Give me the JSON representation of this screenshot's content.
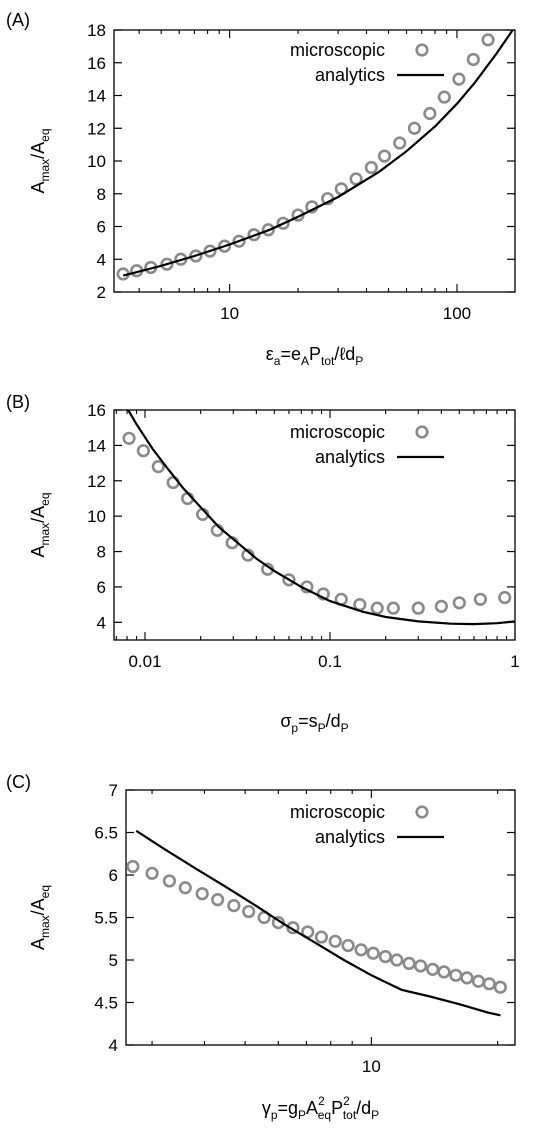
{
  "figure": {
    "colors": {
      "microscopic": "#8a8a8a",
      "analytics": "#000000"
    }
  },
  "chart_data": [
    {
      "type": "scatter",
      "panel_label": "(A)",
      "xscale": "log",
      "xlim": [
        3.1,
        180
      ],
      "ylim": [
        2,
        18
      ],
      "xticks": [
        10,
        100
      ],
      "xtick_labels": [
        "10",
        "100"
      ],
      "yticks": [
        2,
        4,
        6,
        8,
        10,
        12,
        14,
        16,
        18
      ],
      "ytick_labels": [
        "2",
        "4",
        "6",
        "8",
        "10",
        "12",
        "14",
        "16",
        "18"
      ],
      "ylabel": {
        "main": "A",
        "sub1": "max",
        "mid": "/A",
        "sub2": "eq"
      },
      "xlabel": {
        "parts": [
          [
            "ε",
            ""
          ],
          [
            "a",
            "sub"
          ],
          [
            "=e",
            ""
          ],
          [
            "A",
            "sub"
          ],
          [
            "P",
            ""
          ],
          [
            "tot",
            "sub"
          ],
          [
            "/ℓd",
            ""
          ],
          [
            "P",
            "sub"
          ]
        ]
      },
      "legend_position": "top-right",
      "grid": false,
      "series": [
        {
          "name": "microscopic",
          "kind": "points",
          "x": [
            3.4,
            3.9,
            4.5,
            5.3,
            6.1,
            7.1,
            8.2,
            9.5,
            11,
            12.8,
            14.8,
            17.2,
            20,
            23,
            27,
            31,
            36,
            42,
            48,
            56,
            65,
            76,
            88,
            102,
            118,
            137
          ],
          "y": [
            3.1,
            3.3,
            3.5,
            3.7,
            4.0,
            4.2,
            4.5,
            4.8,
            5.1,
            5.5,
            5.8,
            6.2,
            6.7,
            7.2,
            7.7,
            8.3,
            8.9,
            9.6,
            10.3,
            11.1,
            12.0,
            12.9,
            13.9,
            15.0,
            16.2,
            17.4
          ]
        },
        {
          "name": "analytics",
          "kind": "line",
          "x": [
            3.4,
            5,
            7,
            10,
            15,
            20,
            30,
            45,
            60,
            80,
            100,
            120,
            150,
            180
          ],
          "y": [
            3.0,
            3.6,
            4.2,
            4.9,
            5.8,
            6.6,
            7.8,
            9.3,
            10.6,
            12.1,
            13.5,
            14.8,
            16.6,
            18.2
          ]
        }
      ]
    },
    {
      "type": "scatter",
      "panel_label": "(B)",
      "xscale": "log",
      "xlim": [
        0.0068,
        1
      ],
      "ylim": [
        3,
        16
      ],
      "xticks": [
        0.01,
        0.1,
        1
      ],
      "xtick_labels": [
        "0.01",
        "0.1",
        "1"
      ],
      "yticks": [
        4,
        6,
        8,
        10,
        12,
        14,
        16
      ],
      "ytick_labels": [
        "4",
        "6",
        "8",
        "10",
        "12",
        "14",
        "16"
      ],
      "ylabel": {
        "main": "A",
        "sub1": "max",
        "mid": "/A",
        "sub2": "eq"
      },
      "xlabel": {
        "parts": [
          [
            "σ",
            ""
          ],
          [
            "p",
            "sub"
          ],
          [
            "=s",
            ""
          ],
          [
            "P",
            "sub"
          ],
          [
            "/d",
            ""
          ],
          [
            "P",
            "sub"
          ]
        ]
      },
      "legend_position": "top-right",
      "grid": false,
      "series": [
        {
          "name": "microscopic",
          "kind": "points",
          "x": [
            0.0082,
            0.0098,
            0.0118,
            0.0142,
            0.017,
            0.0205,
            0.0246,
            0.0296,
            0.036,
            0.046,
            0.06,
            0.075,
            0.092,
            0.115,
            0.145,
            0.18,
            0.22,
            0.3,
            0.4,
            0.5,
            0.65,
            0.88
          ],
          "y": [
            14.4,
            13.7,
            12.8,
            11.9,
            11.0,
            10.1,
            9.2,
            8.5,
            7.8,
            7.0,
            6.4,
            6.0,
            5.6,
            5.3,
            5.0,
            4.8,
            4.8,
            4.8,
            4.9,
            5.1,
            5.3,
            5.4
          ]
        },
        {
          "name": "analytics",
          "kind": "line",
          "x": [
            0.0075,
            0.009,
            0.011,
            0.013,
            0.016,
            0.02,
            0.025,
            0.03,
            0.04,
            0.05,
            0.07,
            0.1,
            0.15,
            0.2,
            0.3,
            0.45,
            0.6,
            0.8,
            1.0
          ],
          "y": [
            16.6,
            15.2,
            13.8,
            12.8,
            11.6,
            10.5,
            9.4,
            8.7,
            7.6,
            6.9,
            6.0,
            5.2,
            4.6,
            4.3,
            4.05,
            3.92,
            3.9,
            3.95,
            4.05
          ]
        }
      ]
    },
    {
      "type": "scatter",
      "panel_label": "(C)",
      "xscale": "log",
      "xlim": [
        2.6,
        22
      ],
      "ylim": [
        4,
        7
      ],
      "xticks": [
        10
      ],
      "xtick_labels": [
        "10"
      ],
      "yticks": [
        4,
        4.5,
        5,
        5.5,
        6,
        6.5,
        7
      ],
      "ytick_labels": [
        "4",
        "4.5",
        "5",
        "5.5",
        "6",
        "6.5",
        "7"
      ],
      "ylabel": {
        "main": "A",
        "sub1": "max",
        "mid": "/A",
        "sub2": "eq"
      },
      "xlabel": {
        "parts": [
          [
            "γ",
            ""
          ],
          [
            "p",
            "sub"
          ],
          [
            "=g",
            ""
          ],
          [
            "P",
            "sub"
          ],
          [
            "A",
            ""
          ],
          [
            "eq",
            "subsup",
            "2"
          ],
          [
            "P",
            ""
          ],
          [
            "tot",
            "subsup",
            "2"
          ],
          [
            "/d",
            ""
          ],
          [
            "P",
            "sub"
          ]
        ]
      },
      "legend_position": "top-right",
      "grid": false,
      "series": [
        {
          "name": "microscopic",
          "kind": "points",
          "x": [
            2.7,
            3.0,
            3.3,
            3.6,
            3.95,
            4.3,
            4.7,
            5.1,
            5.55,
            6.0,
            6.5,
            7.05,
            7.6,
            8.2,
            8.8,
            9.45,
            10.1,
            10.8,
            11.5,
            12.3,
            13.1,
            14.0,
            14.9,
            15.9,
            16.9,
            18.0,
            19.1,
            20.3
          ],
          "y": [
            6.1,
            6.02,
            5.93,
            5.85,
            5.78,
            5.71,
            5.64,
            5.57,
            5.5,
            5.44,
            5.38,
            5.33,
            5.27,
            5.22,
            5.17,
            5.12,
            5.08,
            5.04,
            5.0,
            4.96,
            4.93,
            4.89,
            4.86,
            4.82,
            4.79,
            4.75,
            4.72,
            4.68
          ]
        },
        {
          "name": "analytics",
          "kind": "line",
          "x": [
            2.75,
            3.2,
            3.8,
            4.5,
            5.3,
            6.2,
            7.3,
            8.6,
            10,
            11.8,
            13.8,
            16.2,
            19,
            20.3
          ],
          "y": [
            6.52,
            6.31,
            6.08,
            5.86,
            5.64,
            5.42,
            5.21,
            5.0,
            4.82,
            4.65,
            4.57,
            4.48,
            4.38,
            4.35
          ]
        }
      ]
    }
  ]
}
